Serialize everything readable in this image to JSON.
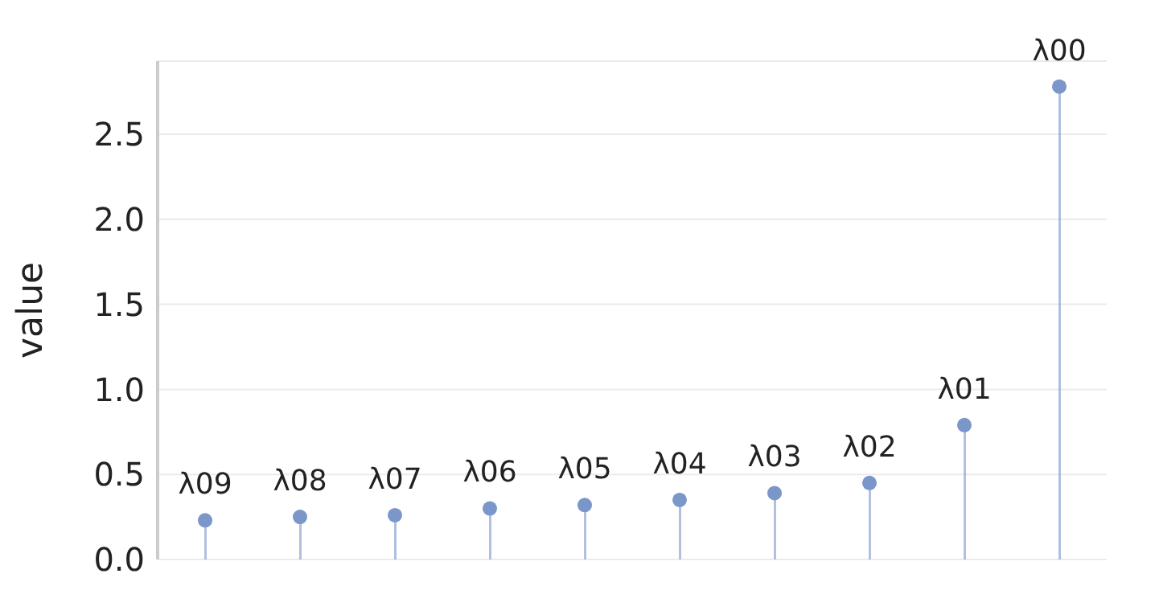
{
  "chart_data": {
    "type": "lollipop",
    "ylabel": "value",
    "categories": [
      "λ09",
      "λ08",
      "λ07",
      "λ06",
      "λ05",
      "λ04",
      "λ03",
      "λ02",
      "λ01",
      "λ00"
    ],
    "values": [
      0.23,
      0.25,
      0.26,
      0.3,
      0.32,
      0.35,
      0.39,
      0.45,
      0.79,
      2.78
    ],
    "color": "#7b96c8",
    "ylim": [
      0,
      2.93
    ],
    "yticks": [
      {
        "value": 0,
        "label": "0.0"
      },
      0.5,
      {
        "value": 1,
        "label": "1.0"
      },
      1.5,
      {
        "value": 2,
        "label": "2.0"
      },
      2.5
    ],
    "grid": "y",
    "marker": "circle",
    "tick_labels": "y"
  }
}
